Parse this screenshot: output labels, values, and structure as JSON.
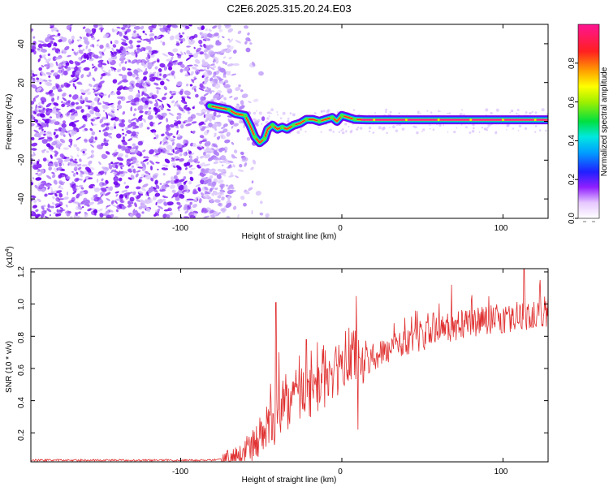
{
  "chart_data": [
    {
      "type": "heatmap",
      "title": "C2E6.2025.315.20.24.E03",
      "xlabel": "Height of straight line (km)",
      "ylabel": "Frequency (Hz)",
      "xlim": [
        -193,
        128
      ],
      "ylim": [
        -50,
        50
      ],
      "xticks": [
        "-100",
        "0",
        "100"
      ],
      "yticks": [
        "-40",
        "-20",
        "0",
        "20",
        "40"
      ],
      "xtick_values": [
        -100,
        0,
        100
      ],
      "ytick_values": [
        -40,
        -20,
        0,
        20,
        40
      ],
      "colorbar": {
        "label": "Normalized spectral amplitude",
        "range": [
          0,
          1
        ],
        "ticks": [
          "0.0",
          "0.2",
          "0.4",
          "0.6",
          "0.8"
        ],
        "tick_values": [
          0.0,
          0.2,
          0.4,
          0.6,
          0.8
        ]
      },
      "ridge": [
        [
          -82,
          8
        ],
        [
          -76,
          7
        ],
        [
          -70,
          6
        ],
        [
          -66,
          4
        ],
        [
          -60,
          3
        ],
        [
          -57,
          -2
        ],
        [
          -54,
          -8
        ],
        [
          -51,
          -11
        ],
        [
          -48,
          -9
        ],
        [
          -46,
          -4
        ],
        [
          -43,
          -2
        ],
        [
          -40,
          -4
        ],
        [
          -37,
          -3
        ],
        [
          -34,
          -4
        ],
        [
          -30,
          -2
        ],
        [
          -26,
          -1
        ],
        [
          -22,
          1
        ],
        [
          -18,
          1
        ],
        [
          -14,
          0
        ],
        [
          -10,
          1
        ],
        [
          -6,
          2
        ],
        [
          -3,
          0
        ],
        [
          0,
          3
        ],
        [
          4,
          2
        ],
        [
          8,
          1
        ],
        [
          15,
          0.8
        ],
        [
          40,
          0.8
        ],
        [
          80,
          0.8
        ],
        [
          128,
          0.8
        ]
      ]
    },
    {
      "type": "line",
      "xlabel": "Height of straight line (km)",
      "ylabel": "SNR (10 * v/v)",
      "multiplier_base": "(x10",
      "multiplier_exp": "4",
      "multiplier_close": ")",
      "xlim": [
        -193,
        128
      ],
      "ylim": [
        0.02,
        1.22
      ],
      "xticks": [
        "-100",
        "0",
        "100"
      ],
      "yticks": [
        "0.2",
        "0.4",
        "0.6",
        "0.8",
        "1.0",
        "1.2"
      ],
      "xtick_values": [
        -100,
        0,
        100
      ],
      "ytick_values": [
        0.2,
        0.4,
        0.6,
        0.8,
        1.0,
        1.2
      ],
      "color": "#e03030",
      "envelope": {
        "x": [
          -193,
          -80,
          -70,
          -60,
          -50,
          -45,
          -40,
          -30,
          -20,
          -10,
          0,
          10,
          20,
          30,
          40,
          50,
          60,
          70,
          80,
          90,
          100,
          110,
          120,
          128
        ],
        "y": [
          0.03,
          0.03,
          0.05,
          0.08,
          0.18,
          0.25,
          0.3,
          0.38,
          0.45,
          0.52,
          0.58,
          0.62,
          0.68,
          0.72,
          0.76,
          0.8,
          0.84,
          0.86,
          0.88,
          0.9,
          0.91,
          0.92,
          0.93,
          0.95
        ]
      },
      "spikes": [
        {
          "x": -41,
          "y": 1.01
        },
        {
          "x": -39,
          "y": 0.7
        },
        {
          "x": -22,
          "y": 0.78
        },
        {
          "x": -12,
          "y": 0.72
        },
        {
          "x": 9,
          "y": 1.05
        },
        {
          "x": 10,
          "y": 0.22
        },
        {
          "x": 68,
          "y": 1.12
        },
        {
          "x": 113,
          "y": 1.22
        },
        {
          "x": 123,
          "y": 1.15
        }
      ]
    }
  ]
}
